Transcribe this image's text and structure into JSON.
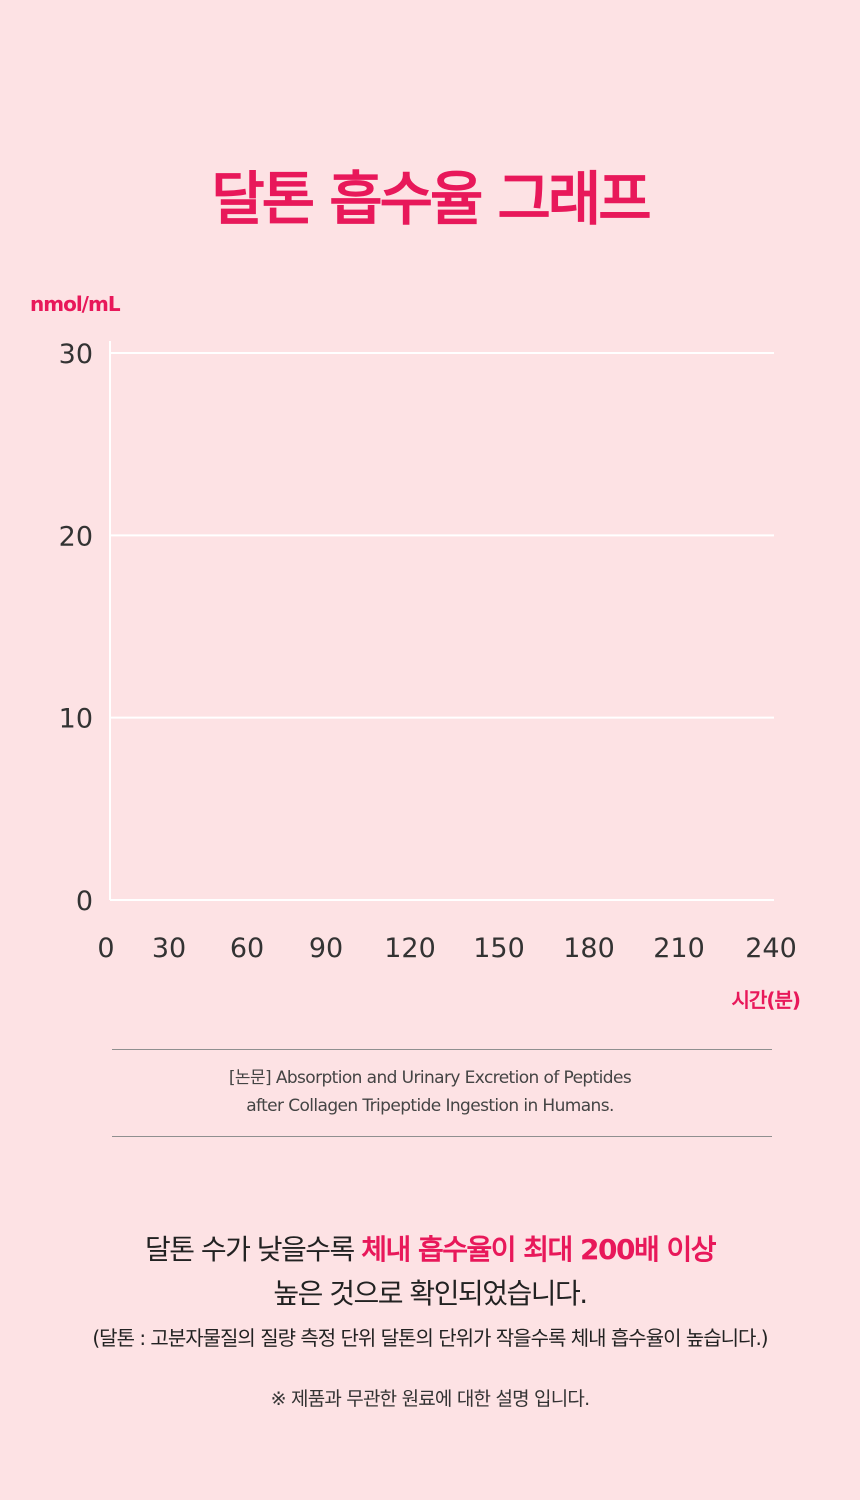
{
  "title": "달톤 흡수율 그래프",
  "colors": {
    "background": "#fde2e4",
    "accent": "#e8185a",
    "gridline": "#ffffff",
    "text": "#222222"
  },
  "chart_data": {
    "type": "line",
    "title": "달톤 흡수율 그래프",
    "ylabel": "nmol/mL",
    "xlabel": "시간(분)",
    "x_ticks": [
      "0",
      "30",
      "60",
      "90",
      "120",
      "150",
      "180",
      "210",
      "240"
    ],
    "y_ticks": [
      "0",
      "10",
      "20",
      "30"
    ],
    "xlim": [
      0,
      240
    ],
    "ylim": [
      0,
      30
    ],
    "grid": true,
    "series": []
  },
  "source": {
    "line1": "[논문] Absorption and Urinary Excretion of Peptides",
    "line2": "after Collagen Tripeptide Ingestion in Humans."
  },
  "summary": {
    "line1_prefix": "달톤 수가 낮을수록 ",
    "line1_highlight": "체내 흡수율이 최대 200배 이상",
    "line2": "높은 것으로 확인되었습니다."
  },
  "footnote": "(달톤 : 고분자물질의 질량 측정 단위 달톤의 단위가 작을수록 체내 흡수율이 높습니다.)",
  "disclaimer": "※ 제품과 무관한 원료에 대한 설명 입니다."
}
